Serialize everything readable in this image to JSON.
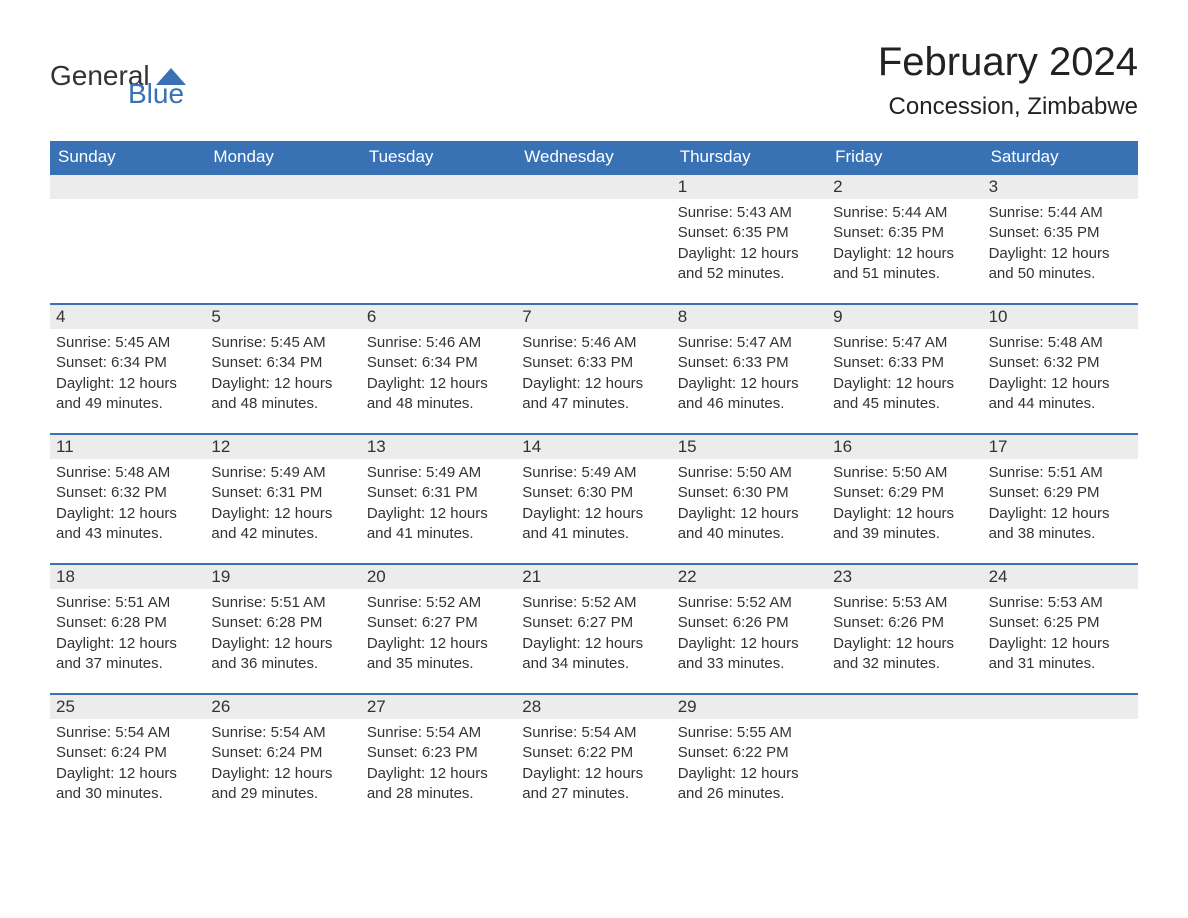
{
  "brand": {
    "text_general": "General",
    "text_blue": "Blue",
    "icon_name": "logo-triangle",
    "icon_color": "#3971b5"
  },
  "title": {
    "month": "February 2024",
    "location": "Concession, Zimbabwe"
  },
  "colors": {
    "header_bg": "#3971b5",
    "header_text": "#ffffff",
    "daynum_bg": "#ececec",
    "week_border": "#3971b5",
    "body_text": "#333333",
    "background": "#ffffff"
  },
  "weekdays": [
    "Sunday",
    "Monday",
    "Tuesday",
    "Wednesday",
    "Thursday",
    "Friday",
    "Saturday"
  ],
  "weeks": [
    [
      {
        "empty": true
      },
      {
        "empty": true
      },
      {
        "empty": true
      },
      {
        "empty": true
      },
      {
        "day": "1",
        "sunrise": "Sunrise: 5:43 AM",
        "sunset": "Sunset: 6:35 PM",
        "daylight": "Daylight: 12 hours and 52 minutes."
      },
      {
        "day": "2",
        "sunrise": "Sunrise: 5:44 AM",
        "sunset": "Sunset: 6:35 PM",
        "daylight": "Daylight: 12 hours and 51 minutes."
      },
      {
        "day": "3",
        "sunrise": "Sunrise: 5:44 AM",
        "sunset": "Sunset: 6:35 PM",
        "daylight": "Daylight: 12 hours and 50 minutes."
      }
    ],
    [
      {
        "day": "4",
        "sunrise": "Sunrise: 5:45 AM",
        "sunset": "Sunset: 6:34 PM",
        "daylight": "Daylight: 12 hours and 49 minutes."
      },
      {
        "day": "5",
        "sunrise": "Sunrise: 5:45 AM",
        "sunset": "Sunset: 6:34 PM",
        "daylight": "Daylight: 12 hours and 48 minutes."
      },
      {
        "day": "6",
        "sunrise": "Sunrise: 5:46 AM",
        "sunset": "Sunset: 6:34 PM",
        "daylight": "Daylight: 12 hours and 48 minutes."
      },
      {
        "day": "7",
        "sunrise": "Sunrise: 5:46 AM",
        "sunset": "Sunset: 6:33 PM",
        "daylight": "Daylight: 12 hours and 47 minutes."
      },
      {
        "day": "8",
        "sunrise": "Sunrise: 5:47 AM",
        "sunset": "Sunset: 6:33 PM",
        "daylight": "Daylight: 12 hours and 46 minutes."
      },
      {
        "day": "9",
        "sunrise": "Sunrise: 5:47 AM",
        "sunset": "Sunset: 6:33 PM",
        "daylight": "Daylight: 12 hours and 45 minutes."
      },
      {
        "day": "10",
        "sunrise": "Sunrise: 5:48 AM",
        "sunset": "Sunset: 6:32 PM",
        "daylight": "Daylight: 12 hours and 44 minutes."
      }
    ],
    [
      {
        "day": "11",
        "sunrise": "Sunrise: 5:48 AM",
        "sunset": "Sunset: 6:32 PM",
        "daylight": "Daylight: 12 hours and 43 minutes."
      },
      {
        "day": "12",
        "sunrise": "Sunrise: 5:49 AM",
        "sunset": "Sunset: 6:31 PM",
        "daylight": "Daylight: 12 hours and 42 minutes."
      },
      {
        "day": "13",
        "sunrise": "Sunrise: 5:49 AM",
        "sunset": "Sunset: 6:31 PM",
        "daylight": "Daylight: 12 hours and 41 minutes."
      },
      {
        "day": "14",
        "sunrise": "Sunrise: 5:49 AM",
        "sunset": "Sunset: 6:30 PM",
        "daylight": "Daylight: 12 hours and 41 minutes."
      },
      {
        "day": "15",
        "sunrise": "Sunrise: 5:50 AM",
        "sunset": "Sunset: 6:30 PM",
        "daylight": "Daylight: 12 hours and 40 minutes."
      },
      {
        "day": "16",
        "sunrise": "Sunrise: 5:50 AM",
        "sunset": "Sunset: 6:29 PM",
        "daylight": "Daylight: 12 hours and 39 minutes."
      },
      {
        "day": "17",
        "sunrise": "Sunrise: 5:51 AM",
        "sunset": "Sunset: 6:29 PM",
        "daylight": "Daylight: 12 hours and 38 minutes."
      }
    ],
    [
      {
        "day": "18",
        "sunrise": "Sunrise: 5:51 AM",
        "sunset": "Sunset: 6:28 PM",
        "daylight": "Daylight: 12 hours and 37 minutes."
      },
      {
        "day": "19",
        "sunrise": "Sunrise: 5:51 AM",
        "sunset": "Sunset: 6:28 PM",
        "daylight": "Daylight: 12 hours and 36 minutes."
      },
      {
        "day": "20",
        "sunrise": "Sunrise: 5:52 AM",
        "sunset": "Sunset: 6:27 PM",
        "daylight": "Daylight: 12 hours and 35 minutes."
      },
      {
        "day": "21",
        "sunrise": "Sunrise: 5:52 AM",
        "sunset": "Sunset: 6:27 PM",
        "daylight": "Daylight: 12 hours and 34 minutes."
      },
      {
        "day": "22",
        "sunrise": "Sunrise: 5:52 AM",
        "sunset": "Sunset: 6:26 PM",
        "daylight": "Daylight: 12 hours and 33 minutes."
      },
      {
        "day": "23",
        "sunrise": "Sunrise: 5:53 AM",
        "sunset": "Sunset: 6:26 PM",
        "daylight": "Daylight: 12 hours and 32 minutes."
      },
      {
        "day": "24",
        "sunrise": "Sunrise: 5:53 AM",
        "sunset": "Sunset: 6:25 PM",
        "daylight": "Daylight: 12 hours and 31 minutes."
      }
    ],
    [
      {
        "day": "25",
        "sunrise": "Sunrise: 5:54 AM",
        "sunset": "Sunset: 6:24 PM",
        "daylight": "Daylight: 12 hours and 30 minutes."
      },
      {
        "day": "26",
        "sunrise": "Sunrise: 5:54 AM",
        "sunset": "Sunset: 6:24 PM",
        "daylight": "Daylight: 12 hours and 29 minutes."
      },
      {
        "day": "27",
        "sunrise": "Sunrise: 5:54 AM",
        "sunset": "Sunset: 6:23 PM",
        "daylight": "Daylight: 12 hours and 28 minutes."
      },
      {
        "day": "28",
        "sunrise": "Sunrise: 5:54 AM",
        "sunset": "Sunset: 6:22 PM",
        "daylight": "Daylight: 12 hours and 27 minutes."
      },
      {
        "day": "29",
        "sunrise": "Sunrise: 5:55 AM",
        "sunset": "Sunset: 6:22 PM",
        "daylight": "Daylight: 12 hours and 26 minutes."
      },
      {
        "empty": true
      },
      {
        "empty": true
      }
    ]
  ]
}
